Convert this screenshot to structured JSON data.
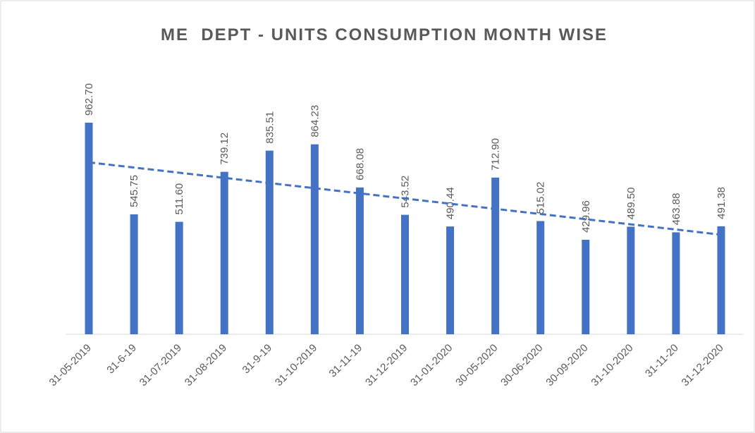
{
  "chart_data": {
    "type": "bar",
    "title": "ME  DEPT - UNITS CONSUMPTION MONTH WISE",
    "categories": [
      "31-05-2019",
      "31-6-19",
      "31-07-2019",
      "31-08-2019",
      "31-9-19",
      "31-10-2019",
      "31-11-19",
      "31-12-2019",
      "31-01-2020",
      "30-05-2020",
      "30-06-2020",
      "30-09-2020",
      "31-10-2020",
      "31-11-20",
      "31-12-2020"
    ],
    "values": [
      962.7,
      545.75,
      511.6,
      739.12,
      835.51,
      864.23,
      668.08,
      543.52,
      490.44,
      712.9,
      515.02,
      429.96,
      489.5,
      463.88,
      491.38
    ],
    "value_labels": [
      "962.70",
      "545.75",
      "511.60",
      "739.12",
      "835.51",
      "864.23",
      "668.08",
      "543.52",
      "490.44",
      "712.90",
      "515.02",
      "429.96",
      "489.50",
      "463.88",
      "491.38"
    ],
    "color": "#4472c4",
    "trendline": "linear",
    "ylim": [
      0,
      1200
    ]
  }
}
